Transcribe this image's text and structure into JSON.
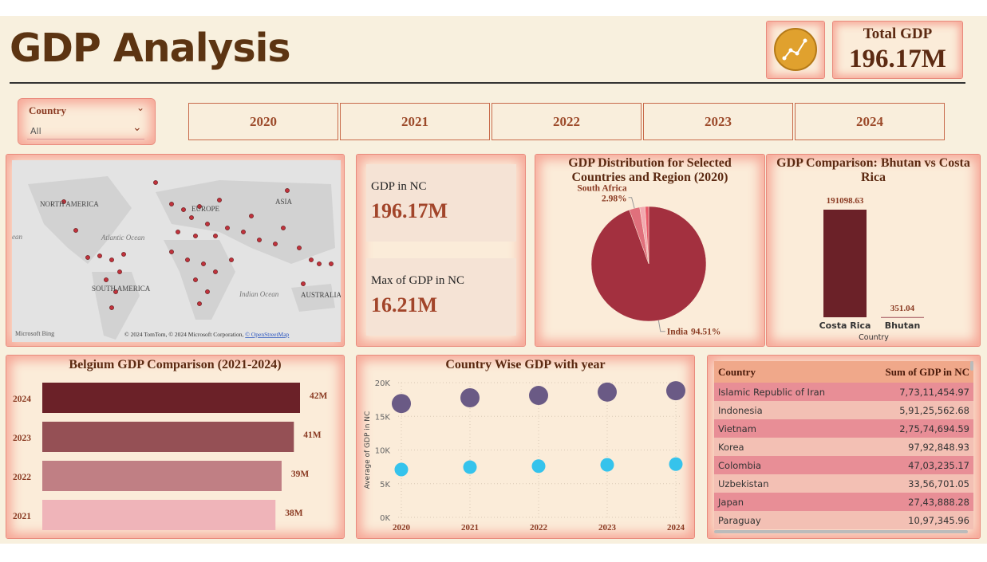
{
  "header": {
    "title": "GDP Analysis",
    "kpi_label": "Total GDP",
    "kpi_value": "196.17M"
  },
  "filters": {
    "country_label": "Country",
    "country_value": "All",
    "years": [
      "2020",
      "2021",
      "2022",
      "2023",
      "2024"
    ]
  },
  "map": {
    "labels": [
      "NORTH AMERICA",
      "ASIA",
      "EUROPE",
      "Atlantic Ocean",
      "SOUTH AMERICA",
      "Indian Ocean",
      "AUSTRALIA",
      "ean"
    ],
    "logo": "Microsoft Bing",
    "attribution": "© 2024 TomTom, © 2024 Microsoft Corporation, ",
    "attribution_link": "© OpenStreetMap"
  },
  "cards": [
    {
      "label": "GDP in NC",
      "value": "196.17M"
    },
    {
      "label": "Max of GDP in NC",
      "value": "16.21M"
    }
  ],
  "chart_data": [
    {
      "type": "pie",
      "title": "GDP Distribution for Selected Countries and Region (2020)",
      "categories": [
        "India",
        "South Africa",
        null,
        null
      ],
      "values": [
        94.51,
        2.98,
        1.5,
        1.01
      ],
      "value_labels": [
        "94.51%",
        "2.98%",
        null,
        null
      ],
      "colors": [
        "#a3303f",
        "#e0707c",
        "#f2a9b0",
        "#e85a6a"
      ]
    },
    {
      "type": "bar",
      "title": "GDP Comparison: Bhutan vs Costa Rica",
      "x_label": "Country",
      "categories": [
        "Costa Rica",
        "Bhutan"
      ],
      "values": [
        191098.63,
        351.04
      ],
      "colors": [
        "#6b2128",
        "#a0505a"
      ]
    },
    {
      "type": "hbar",
      "title": "Belgium GDP Comparison (2021-2024)",
      "categories": [
        "2024",
        "2023",
        "2022",
        "2021"
      ],
      "values": [
        42,
        41,
        39,
        38
      ],
      "value_labels": [
        "42M",
        "41M",
        "39M",
        "38M"
      ],
      "colors": [
        "#6b2128",
        "#955055",
        "#c07f84",
        "#efb4b9"
      ]
    },
    {
      "type": "scatter",
      "title": "Country Wise GDP with year",
      "y_label": "Average of GDP in NC",
      "categories": [
        "2020",
        "2021",
        "2022",
        "2023",
        "2024"
      ],
      "series": [
        {
          "color": "#6a5a85",
          "values": [
            16900,
            17750,
            18100,
            18600,
            18800
          ]
        },
        {
          "color": "#35c3ec",
          "values": [
            7100,
            7450,
            7600,
            7800,
            7900
          ]
        }
      ],
      "ylim": [
        0,
        20000
      ],
      "yticks": [
        {
          "value": 0,
          "label": "0K"
        },
        {
          "value": 5000,
          "label": "5K"
        },
        {
          "value": 10000,
          "label": "10K"
        },
        {
          "value": 15000,
          "label": "15K"
        },
        {
          "value": 20000,
          "label": "20K"
        }
      ],
      "grid": true
    }
  ],
  "table": {
    "columns": [
      "Country",
      "Sum of GDP in NC"
    ],
    "rows": [
      [
        "Islamic Republic of Iran",
        "7,73,11,454.97"
      ],
      [
        "Indonesia",
        "5,91,25,562.68"
      ],
      [
        "Vietnam",
        "2,75,74,694.59"
      ],
      [
        "Korea",
        "97,92,848.93"
      ],
      [
        "Colombia",
        "47,03,235.17"
      ],
      [
        "Uzbekistan",
        "33,56,701.05"
      ],
      [
        "Japan",
        "27,43,888.28"
      ],
      [
        "Paraguay",
        "10,97,345.96"
      ]
    ]
  }
}
